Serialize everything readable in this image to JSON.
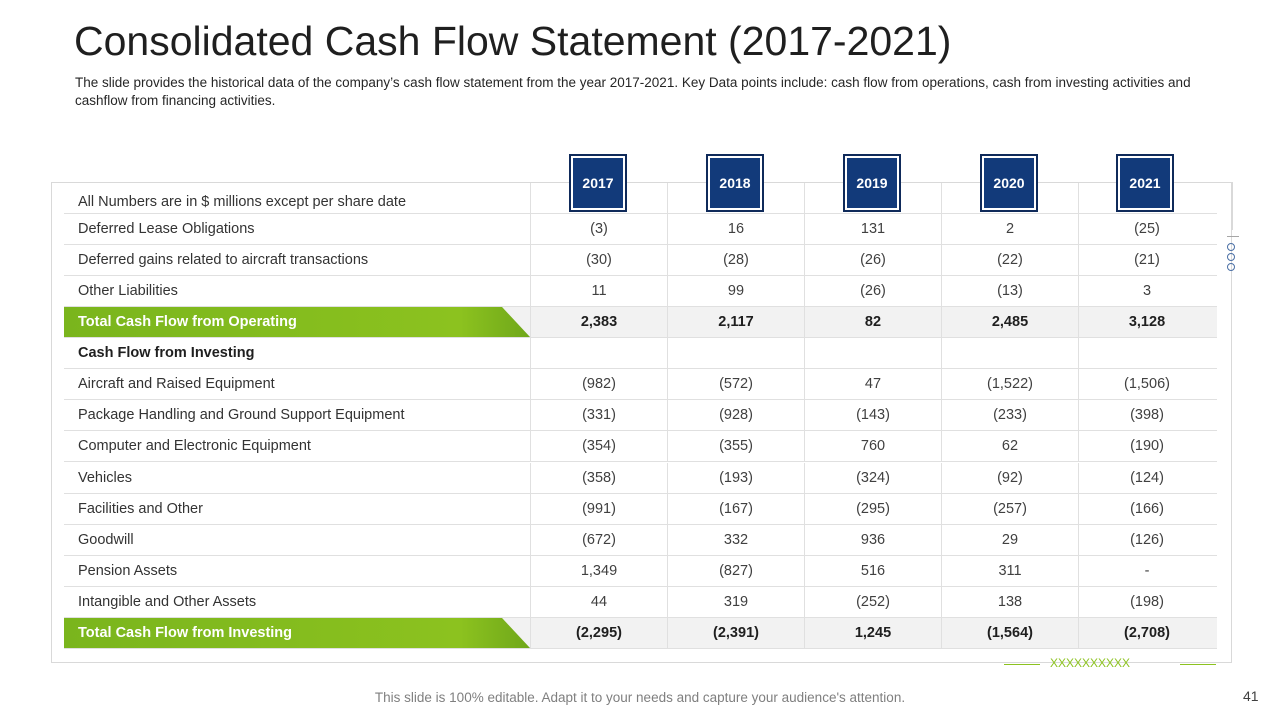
{
  "title": "Consolidated Cash Flow Statement (2017-2021)",
  "subtitle": "The slide provides the historical data of the company’s cash flow statement from the year 2017-2021. Key Data points include: cash flow from operations, cash from investing activities and cashflow from financing activities.",
  "years": [
    "2017",
    "2018",
    "2019",
    "2020",
    "2021"
  ],
  "table": {
    "header_label": "All Numbers are in $ millions except per share date",
    "rows": [
      {
        "label": "Deferred Lease Obligations",
        "values": [
          "(3)",
          "16",
          "131",
          "2",
          "(25)"
        ]
      },
      {
        "label": "Deferred gains related to aircraft transactions",
        "values": [
          "(30)",
          "(28)",
          "(26)",
          "(22)",
          "(21)"
        ]
      },
      {
        "label": "Other Liabilities",
        "values": [
          "11",
          "99",
          "(26)",
          "(13)",
          "3"
        ]
      },
      {
        "label": "Total  Cash Flow from Operating",
        "values": [
          "2,383",
          "2,117",
          "82",
          "2,485",
          "3,128"
        ]
      },
      {
        "label": "Cash Flow from Investing",
        "values": [
          "",
          "",
          "",
          "",
          ""
        ]
      },
      {
        "label": "Aircraft and Raised Equipment",
        "values": [
          "(982)",
          "(572)",
          "47",
          "(1,522)",
          "(1,506)"
        ]
      },
      {
        "label": "Package Handling and Ground Support Equipment",
        "values": [
          "(331)",
          "(928)",
          "(143)",
          "(233)",
          "(398)"
        ]
      },
      {
        "label": "Computer and Electronic Equipment",
        "values": [
          "(354)",
          "(355)",
          "760",
          "62",
          "(190)"
        ]
      },
      {
        "label": "Vehicles",
        "values": [
          "(358)",
          "(193)",
          "(324)",
          "(92)",
          "(124)"
        ]
      },
      {
        "label": "Facilities and Other",
        "values": [
          "(991)",
          "(167)",
          "(295)",
          "(257)",
          "(166)"
        ]
      },
      {
        "label": "Goodwill",
        "values": [
          "(672)",
          "332",
          "936",
          "29",
          "(126)"
        ]
      },
      {
        "label": "Pension Assets",
        "values": [
          "1,349",
          "(827)",
          "516",
          "311",
          "-"
        ]
      },
      {
        "label": "Intangible  and Other Assets",
        "values": [
          "44",
          "319",
          "(252)",
          "138",
          "(198)"
        ]
      },
      {
        "label": "Total Cash Flow from Investing",
        "values": [
          "(2,295)",
          "(2,391)",
          "1,245",
          "(1,564)",
          "(2,708)"
        ]
      }
    ]
  },
  "decoration": {
    "x_pattern": "XXXXXXXXXX"
  },
  "footnote": "This slide is 100% editable. Adapt it to your needs and capture your audience's attention.",
  "page_number": "41",
  "colors": {
    "accent_green": "#8cc21f",
    "year_navy": "#123a7a"
  }
}
